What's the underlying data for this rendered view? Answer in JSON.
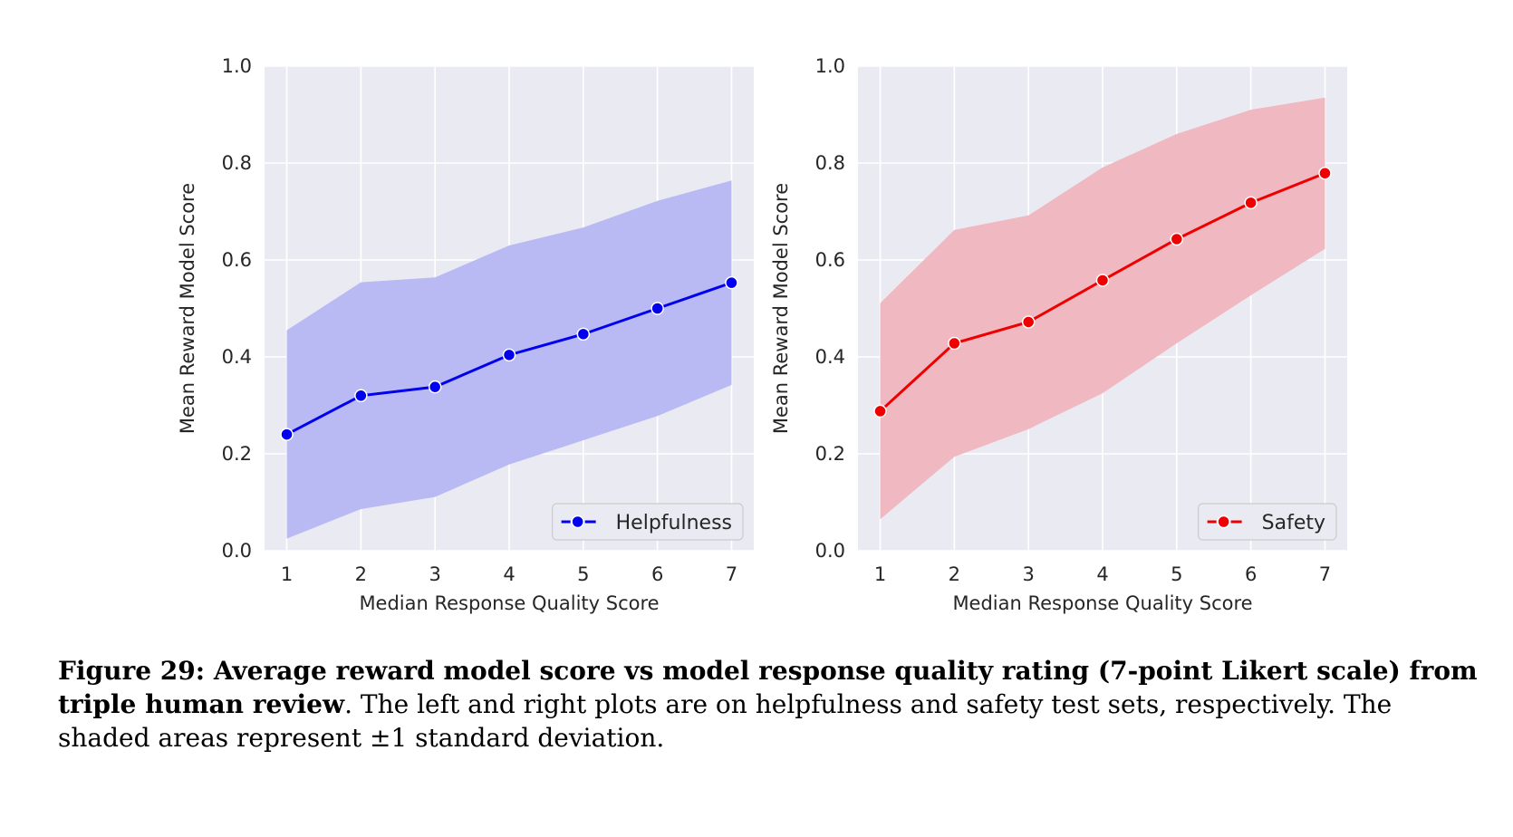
{
  "chart_data": [
    {
      "type": "line",
      "xlabel": "Median Response Quality Score",
      "ylabel": "Mean Reward Model Score",
      "x": [
        1,
        2,
        3,
        4,
        5,
        6,
        7
      ],
      "xlim": [
        0.7,
        7.3
      ],
      "ylim": [
        0.0,
        1.0
      ],
      "yticks": [
        "0.0",
        "0.2",
        "0.4",
        "0.6",
        "0.8",
        "1.0"
      ],
      "xticks": [
        "1",
        "2",
        "3",
        "4",
        "5",
        "6",
        "7"
      ],
      "grid": true,
      "legend_position": "bottom-right",
      "series": [
        {
          "name": "Helpfulness",
          "color": "#0000ee",
          "band_color": "#b9b9f4",
          "values": [
            0.24,
            0.32,
            0.338,
            0.404,
            0.447,
            0.5,
            0.553
          ],
          "lower": [
            0.025,
            0.086,
            0.111,
            0.178,
            0.228,
            0.278,
            0.342
          ],
          "upper": [
            0.455,
            0.554,
            0.564,
            0.63,
            0.667,
            0.722,
            0.764
          ]
        }
      ]
    },
    {
      "type": "line",
      "xlabel": "Median Response Quality Score",
      "ylabel": "Mean Reward Model Score",
      "x": [
        1,
        2,
        3,
        4,
        5,
        6,
        7
      ],
      "xlim": [
        0.7,
        7.3
      ],
      "ylim": [
        0.0,
        1.0
      ],
      "yticks": [
        "0.0",
        "0.2",
        "0.4",
        "0.6",
        "0.8",
        "1.0"
      ],
      "xticks": [
        "1",
        "2",
        "3",
        "4",
        "5",
        "6",
        "7"
      ],
      "grid": true,
      "legend_position": "bottom-right",
      "series": [
        {
          "name": "Safety",
          "color": "#ee0000",
          "band_color": "#f0b8c0",
          "values": [
            0.288,
            0.428,
            0.472,
            0.558,
            0.643,
            0.718,
            0.779
          ],
          "lower": [
            0.065,
            0.194,
            0.251,
            0.325,
            0.428,
            0.527,
            0.623
          ],
          "upper": [
            0.511,
            0.662,
            0.692,
            0.791,
            0.86,
            0.91,
            0.935
          ]
        }
      ]
    }
  ],
  "caption": {
    "bold": "Figure 29: Average reward model score vs model response quality rating (7-point Likert scale) from triple human review",
    "text": ". The left and right plots are on helpfulness and safety test sets, respectively. The shaded areas represent ±1 standard deviation."
  }
}
